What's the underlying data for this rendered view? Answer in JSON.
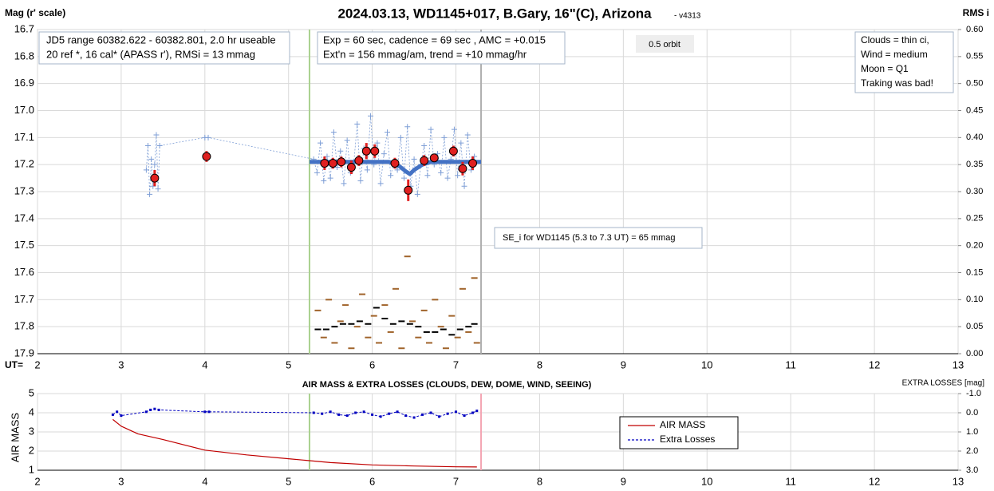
{
  "chart_data": [
    {
      "type": "line",
      "title": "2024.03.13, WD1145+017, B.Gary, 16\"(C), Arizona",
      "subtitle": "- v4313",
      "ylabel": "Mag (r' scale)",
      "y2label": "RMS i",
      "xlabel": "UT=",
      "xlim": [
        2,
        13
      ],
      "xticks": [
        2,
        3,
        4,
        5,
        6,
        7,
        8,
        9,
        10,
        11,
        12,
        13
      ],
      "ylim": [
        17.9,
        16.7
      ],
      "yticks": [
        16.7,
        16.8,
        16.9,
        {
          "value": 17,
          "label": "17.0"
        },
        17.1,
        17.2,
        17.3,
        17.4,
        17.5,
        17.6,
        17.7,
        17.8,
        17.9
      ],
      "y2lim": [
        0,
        0.6
      ],
      "y2ticks": [
        {
          "value": 0.6,
          "label": "0.60"
        },
        0.55,
        {
          "value": 0.5,
          "label": "0.50"
        },
        0.45,
        {
          "value": 0.4,
          "label": "0.40"
        },
        0.35,
        {
          "value": 0.3,
          "label": "0.30"
        },
        0.25,
        {
          "value": 0.2,
          "label": "0.20"
        },
        0.15,
        {
          "value": 0.1,
          "label": "0.10"
        },
        0.05,
        {
          "value": 0,
          "label": "0.00"
        }
      ],
      "grid": true,
      "vlines": [
        {
          "x": 5.25,
          "color": "#a9d18e"
        },
        {
          "x": 7.3,
          "color": "#b0b0b0"
        }
      ],
      "annotations": [
        {
          "lines": [
            "JD5 range 60382.622 - 60382.801, 2.0 hr useable",
            "20 ref *, 16 cal*  (APASS r'), RMSi = 13 mmag"
          ]
        },
        {
          "lines": [
            "Exp = 60 sec, cadence = 69 sec , AMC = +0.015",
            "Ext'n = 156 mmag/am, trend = +10 mmag/hr"
          ]
        },
        {
          "lines": [
            "0.5 orbit"
          ]
        },
        {
          "lines": [
            "Clouds = thin ci,",
            "Wind    = medium",
            "Moon  = Q1",
            "Traking was bad!"
          ]
        },
        {
          "lines": [
            "SE_i for WD1145 (5.3 to 7.3 UT) = 65 mmag"
          ]
        }
      ],
      "series": [
        {
          "mark": "cross",
          "color": "#7f9fd6",
          "x": [
            3.3,
            3.32,
            3.34,
            3.36,
            3.38,
            3.4,
            3.42,
            3.44,
            3.46,
            4.0,
            4.04,
            5.3,
            5.34,
            5.38,
            5.42,
            5.46,
            5.5,
            5.54,
            5.58,
            5.62,
            5.66,
            5.7,
            5.74,
            5.78,
            5.82,
            5.86,
            5.9,
            5.94,
            5.98,
            6.02,
            6.06,
            6.1,
            6.14,
            6.18,
            6.22,
            6.26,
            6.3,
            6.34,
            6.38,
            6.42,
            6.46,
            6.5,
            6.54,
            6.58,
            6.62,
            6.66,
            6.7,
            6.74,
            6.78,
            6.82,
            6.86,
            6.9,
            6.94,
            6.98,
            7.02,
            7.06,
            7.1,
            7.14,
            7.18,
            7.22
          ],
          "values": [
            17.22,
            17.13,
            17.31,
            17.18,
            17.28,
            17.2,
            17.09,
            17.29,
            17.13,
            17.1,
            17.1,
            17.18,
            17.23,
            17.12,
            17.26,
            17.17,
            17.25,
            17.08,
            17.21,
            17.15,
            17.27,
            17.11,
            17.23,
            17.19,
            17.05,
            17.26,
            17.14,
            17.22,
            17.02,
            17.2,
            17.12,
            17.27,
            17.16,
            17.08,
            17.24,
            17.19,
            17.22,
            17.1,
            17.25,
            17.06,
            17.28,
            17.18,
            17.31,
            17.2,
            17.13,
            17.24,
            17.07,
            17.2,
            17.16,
            17.23,
            17.1,
            17.25,
            17.18,
            17.07,
            17.24,
            17.12,
            17.28,
            17.09,
            17.22,
            17.17
          ]
        },
        {
          "mark": "line",
          "color": "#4472c4",
          "x": [
            5.25,
            6.2,
            6.3,
            6.4,
            6.45,
            6.5,
            6.6,
            6.7,
            7.3
          ],
          "values": [
            17.19,
            17.19,
            17.2,
            17.225,
            17.235,
            17.22,
            17.2,
            17.19,
            17.19
          ]
        },
        {
          "mark": "circle",
          "color": "#e02020",
          "x": [
            3.4,
            4.02,
            5.43,
            5.53,
            5.63,
            5.75,
            5.84,
            5.93,
            6.03,
            6.27,
            6.43,
            6.62,
            6.74,
            6.97,
            7.08,
            7.2
          ],
          "values": [
            17.25,
            17.17,
            17.195,
            17.195,
            17.19,
            17.21,
            17.185,
            17.15,
            17.15,
            17.195,
            17.295,
            17.185,
            17.175,
            17.15,
            17.215,
            17.195
          ],
          "errors": [
            0.03,
            0.02,
            0.025,
            0.02,
            0.02,
            0.025,
            0.02,
            0.03,
            0.025,
            0.02,
            0.04,
            0.02,
            0.015,
            0.02,
            0.025,
            0.025
          ]
        },
        {
          "mark": "dash",
          "axis": "y2",
          "color": "#a0632a",
          "x": [
            5.35,
            5.42,
            5.48,
            5.55,
            5.62,
            5.68,
            5.75,
            5.82,
            5.88,
            5.95,
            6.02,
            6.08,
            6.15,
            6.22,
            6.28,
            6.35,
            6.42,
            6.48,
            6.55,
            6.62,
            6.68,
            6.75,
            6.82,
            6.88,
            6.95,
            7.02,
            7.08,
            7.15,
            7.22,
            7.25
          ],
          "values": [
            0.08,
            0.03,
            0.1,
            0.02,
            0.06,
            0.09,
            0.01,
            0.05,
            0.11,
            0.03,
            0.07,
            0.02,
            0.09,
            0.04,
            0.12,
            0.01,
            0.18,
            0.06,
            0.03,
            0.08,
            0.02,
            0.1,
            0.05,
            0.01,
            0.07,
            0.03,
            0.12,
            0.04,
            0.14,
            0.02
          ]
        },
        {
          "mark": "dash",
          "axis": "y2",
          "color": "#000000",
          "x": [
            5.35,
            5.45,
            5.55,
            5.65,
            5.75,
            5.85,
            5.95,
            6.05,
            6.15,
            6.25,
            6.35,
            6.45,
            6.55,
            6.65,
            6.75,
            6.85,
            6.95,
            7.05,
            7.15,
            7.22
          ],
          "values": [
            0.045,
            0.045,
            0.05,
            0.055,
            0.055,
            0.06,
            0.055,
            0.085,
            0.065,
            0.055,
            0.06,
            0.055,
            0.05,
            0.04,
            0.04,
            0.045,
            0.035,
            0.045,
            0.05,
            0.055
          ]
        }
      ]
    },
    {
      "type": "line",
      "title": "AIR MASS & EXTRA LOSSES (CLOUDS, DEW, DOME, WIND, SEEING)",
      "ylabel": "AIR MASS",
      "y2label": "EXTRA LOSSES [mag]",
      "xlim": [
        2,
        13
      ],
      "xticks": [
        2,
        3,
        4,
        5,
        6,
        7,
        8,
        9,
        10,
        11,
        12,
        13
      ],
      "ylim": [
        1,
        5
      ],
      "yticks": [
        1,
        2,
        3,
        4,
        5
      ],
      "y2lim": [
        3,
        -1
      ],
      "y2ticks": [
        {
          "value": -1,
          "label": "-1.0"
        },
        {
          "value": 0,
          "label": "0.0"
        },
        {
          "value": 1,
          "label": "1.0"
        },
        {
          "value": 2,
          "label": "2.0"
        },
        {
          "value": 3,
          "label": "3.0"
        }
      ],
      "grid": true,
      "vlines": [
        {
          "x": 5.25,
          "color": "#a9d18e"
        },
        {
          "x": 7.3,
          "color": "#f4a6b4"
        }
      ],
      "series": [
        {
          "name": "AIR MASS",
          "mark": "line-thin",
          "color": "#c00000",
          "x": [
            2.9,
            3.0,
            3.2,
            3.5,
            4.0,
            4.5,
            5.0,
            5.5,
            6.0,
            6.5,
            7.0,
            7.25
          ],
          "values": [
            3.65,
            3.3,
            2.9,
            2.6,
            2.05,
            1.8,
            1.6,
            1.4,
            1.28,
            1.22,
            1.18,
            1.17
          ]
        },
        {
          "name": "Extra Losses",
          "mark": "square",
          "axis": "y2",
          "color": "#0000c0",
          "x": [
            2.9,
            2.95,
            3.0,
            3.3,
            3.35,
            3.4,
            3.45,
            4.0,
            4.05,
            5.3,
            5.4,
            5.5,
            5.6,
            5.7,
            5.8,
            5.9,
            6.0,
            6.1,
            6.2,
            6.3,
            6.4,
            6.5,
            6.6,
            6.7,
            6.8,
            6.9,
            7.0,
            7.1,
            7.2,
            7.25
          ],
          "values": [
            0.1,
            -0.05,
            0.15,
            -0.05,
            -0.15,
            -0.2,
            -0.15,
            -0.05,
            -0.05,
            0.0,
            0.05,
            -0.05,
            0.1,
            0.15,
            0.0,
            -0.05,
            0.1,
            0.2,
            0.05,
            -0.05,
            0.15,
            0.25,
            0.1,
            0.0,
            0.2,
            0.05,
            -0.05,
            0.15,
            0.0,
            -0.1
          ]
        }
      ]
    }
  ]
}
